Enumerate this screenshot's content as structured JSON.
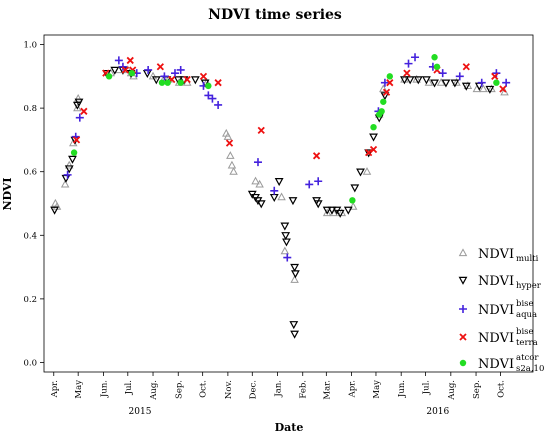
{
  "chart_data": {
    "type": "scatter",
    "title": "NDVI time series",
    "xlabel": "Date",
    "ylabel": "NDVI",
    "ylim": [
      -0.03,
      1.03
    ],
    "yticks": [
      0.0,
      0.2,
      0.4,
      0.6,
      0.8,
      1.0
    ],
    "ytick_labels": [
      "0.0",
      "0.2",
      "0.4",
      "0.6",
      "0.8",
      "1.0"
    ],
    "x_domain": [
      "2015-03-20",
      "2016-11-10"
    ],
    "month_ticks": [
      {
        "label": "Apr.",
        "date": "2015-04-01"
      },
      {
        "label": "May",
        "date": "2015-05-01"
      },
      {
        "label": "Jun.",
        "date": "2015-06-01"
      },
      {
        "label": "Jul.",
        "date": "2015-07-01"
      },
      {
        "label": "Aug.",
        "date": "2015-08-01"
      },
      {
        "label": "Sep.",
        "date": "2015-09-01"
      },
      {
        "label": "Oct.",
        "date": "2015-10-01"
      },
      {
        "label": "Nov.",
        "date": "2015-11-01"
      },
      {
        "label": "Dec.",
        "date": "2015-12-01"
      },
      {
        "label": "Jan.",
        "date": "2016-01-01"
      },
      {
        "label": "Feb.",
        "date": "2016-02-01"
      },
      {
        "label": "Mar.",
        "date": "2016-03-01"
      },
      {
        "label": "Apr.",
        "date": "2016-04-01"
      },
      {
        "label": "May",
        "date": "2016-05-01"
      },
      {
        "label": "Jun.",
        "date": "2016-06-01"
      },
      {
        "label": "Jul.",
        "date": "2016-07-01"
      },
      {
        "label": "Aug.",
        "date": "2016-08-01"
      },
      {
        "label": "Sep.",
        "date": "2016-09-01"
      },
      {
        "label": "Oct.",
        "date": "2016-10-01"
      }
    ],
    "year_labels": [
      {
        "label": "2015",
        "date": "2015-07-16"
      },
      {
        "label": "2016",
        "date": "2016-07-16"
      }
    ],
    "legend_position": "right",
    "series": [
      {
        "name": "NDVI",
        "subscript": "multi",
        "superscript": "",
        "marker": "triangle-up",
        "color": "#9a9a9a",
        "points": [
          [
            "2015-04-03",
            0.5
          ],
          [
            "2015-04-05",
            0.49
          ],
          [
            "2015-04-15",
            0.56
          ],
          [
            "2015-04-20",
            0.62
          ],
          [
            "2015-04-25",
            0.69
          ],
          [
            "2015-04-30",
            0.8
          ],
          [
            "2015-05-01",
            0.83
          ],
          [
            "2015-06-10",
            0.91
          ],
          [
            "2015-06-20",
            0.92
          ],
          [
            "2015-07-01",
            0.92
          ],
          [
            "2015-07-05",
            0.91
          ],
          [
            "2015-07-08",
            0.9
          ],
          [
            "2015-08-01",
            0.9
          ],
          [
            "2015-08-14",
            0.89
          ],
          [
            "2015-08-20",
            0.89
          ],
          [
            "2015-09-02",
            0.88
          ],
          [
            "2015-09-12",
            0.88
          ],
          [
            "2015-10-06",
            0.88
          ],
          [
            "2015-10-30",
            0.72
          ],
          [
            "2015-11-01",
            0.71
          ],
          [
            "2015-11-04",
            0.65
          ],
          [
            "2015-11-06",
            0.62
          ],
          [
            "2015-11-08",
            0.6
          ],
          [
            "2015-12-05",
            0.57
          ],
          [
            "2015-12-10",
            0.56
          ],
          [
            "2016-01-06",
            0.52
          ],
          [
            "2016-01-10",
            0.35
          ],
          [
            "2016-01-22",
            0.26
          ],
          [
            "2016-03-02",
            0.47
          ],
          [
            "2016-03-10",
            0.47
          ],
          [
            "2016-03-20",
            0.47
          ],
          [
            "2016-04-03",
            0.49
          ],
          [
            "2016-04-20",
            0.6
          ],
          [
            "2016-05-05",
            0.78
          ],
          [
            "2016-05-10",
            0.86
          ],
          [
            "2016-06-05",
            0.89
          ],
          [
            "2016-06-20",
            0.89
          ],
          [
            "2016-07-05",
            0.88
          ],
          [
            "2016-07-20",
            0.88
          ],
          [
            "2016-08-08",
            0.88
          ],
          [
            "2016-08-22",
            0.87
          ],
          [
            "2016-09-02",
            0.86
          ],
          [
            "2016-09-10",
            0.86
          ],
          [
            "2016-09-20",
            0.86
          ],
          [
            "2016-10-06",
            0.85
          ]
        ]
      },
      {
        "name": "NDVI",
        "subscript": "hyper",
        "superscript": "",
        "marker": "triangle-down",
        "color": "#000000",
        "points": [
          [
            "2015-04-02",
            0.48
          ],
          [
            "2015-04-16",
            0.58
          ],
          [
            "2015-04-20",
            0.61
          ],
          [
            "2015-04-24",
            0.64
          ],
          [
            "2015-04-27",
            0.7
          ],
          [
            "2015-04-30",
            0.81
          ],
          [
            "2015-05-02",
            0.82
          ],
          [
            "2015-06-05",
            0.91
          ],
          [
            "2015-06-15",
            0.92
          ],
          [
            "2015-06-25",
            0.92
          ],
          [
            "2015-07-05",
            0.91
          ],
          [
            "2015-07-25",
            0.91
          ],
          [
            "2015-08-05",
            0.89
          ],
          [
            "2015-08-18",
            0.89
          ],
          [
            "2015-09-01",
            0.89
          ],
          [
            "2015-09-08",
            0.89
          ],
          [
            "2015-09-22",
            0.89
          ],
          [
            "2015-10-04",
            0.88
          ],
          [
            "2015-12-01",
            0.53
          ],
          [
            "2015-12-05",
            0.52
          ],
          [
            "2015-12-08",
            0.51
          ],
          [
            "2015-12-12",
            0.5
          ],
          [
            "2015-12-28",
            0.52
          ],
          [
            "2016-01-03",
            0.57
          ],
          [
            "2016-01-10",
            0.43
          ],
          [
            "2016-01-11",
            0.4
          ],
          [
            "2016-01-12",
            0.38
          ],
          [
            "2016-01-20",
            0.51
          ],
          [
            "2016-01-22",
            0.3
          ],
          [
            "2016-01-23",
            0.28
          ],
          [
            "2016-01-21",
            0.12
          ],
          [
            "2016-01-22",
            0.09
          ],
          [
            "2016-02-18",
            0.51
          ],
          [
            "2016-02-20",
            0.5
          ],
          [
            "2016-03-02",
            0.48
          ],
          [
            "2016-03-08",
            0.48
          ],
          [
            "2016-03-14",
            0.48
          ],
          [
            "2016-03-18",
            0.47
          ],
          [
            "2016-03-28",
            0.48
          ],
          [
            "2016-04-05",
            0.55
          ],
          [
            "2016-04-12",
            0.6
          ],
          [
            "2016-04-22",
            0.66
          ],
          [
            "2016-04-28",
            0.71
          ],
          [
            "2016-05-05",
            0.77
          ],
          [
            "2016-05-12",
            0.84
          ],
          [
            "2016-06-05",
            0.89
          ],
          [
            "2016-06-12",
            0.89
          ],
          [
            "2016-06-22",
            0.89
          ],
          [
            "2016-07-02",
            0.89
          ],
          [
            "2016-07-12",
            0.88
          ],
          [
            "2016-07-26",
            0.88
          ],
          [
            "2016-08-06",
            0.88
          ],
          [
            "2016-08-20",
            0.87
          ],
          [
            "2016-09-05",
            0.87
          ],
          [
            "2016-09-18",
            0.86
          ]
        ]
      },
      {
        "name": "NDVI",
        "subscript": "aqua",
        "superscript": "bise",
        "marker": "plus",
        "color": "#4422dd",
        "points": [
          [
            "2015-04-18",
            0.59
          ],
          [
            "2015-04-28",
            0.71
          ],
          [
            "2015-05-03",
            0.77
          ],
          [
            "2015-06-20",
            0.95
          ],
          [
            "2015-06-25",
            0.93
          ],
          [
            "2015-07-12",
            0.91
          ],
          [
            "2015-07-26",
            0.92
          ],
          [
            "2015-08-15",
            0.9
          ],
          [
            "2015-08-28",
            0.91
          ],
          [
            "2015-09-04",
            0.92
          ],
          [
            "2015-10-02",
            0.87
          ],
          [
            "2015-10-08",
            0.84
          ],
          [
            "2015-10-13",
            0.83
          ],
          [
            "2015-10-20",
            0.81
          ],
          [
            "2015-12-08",
            0.63
          ],
          [
            "2015-12-28",
            0.54
          ],
          [
            "2016-01-13",
            0.33
          ],
          [
            "2016-02-09",
            0.56
          ],
          [
            "2016-02-20",
            0.57
          ],
          [
            "2016-05-04",
            0.79
          ],
          [
            "2016-05-12",
            0.88
          ],
          [
            "2016-06-10",
            0.94
          ],
          [
            "2016-06-18",
            0.96
          ],
          [
            "2016-07-10",
            0.93
          ],
          [
            "2016-07-22",
            0.91
          ],
          [
            "2016-08-12",
            0.9
          ],
          [
            "2016-09-08",
            0.88
          ],
          [
            "2016-09-26",
            0.91
          ],
          [
            "2016-10-08",
            0.88
          ]
        ]
      },
      {
        "name": "NDVI",
        "subscript": "terra",
        "superscript": "bise",
        "marker": "x",
        "color": "#ee1111",
        "points": [
          [
            "2015-04-29",
            0.7
          ],
          [
            "2015-05-08",
            0.79
          ],
          [
            "2015-06-04",
            0.91
          ],
          [
            "2015-06-28",
            0.92
          ],
          [
            "2015-07-04",
            0.95
          ],
          [
            "2015-07-07",
            0.92
          ],
          [
            "2015-08-10",
            0.93
          ],
          [
            "2015-08-24",
            0.89
          ],
          [
            "2015-09-12",
            0.89
          ],
          [
            "2015-10-02",
            0.9
          ],
          [
            "2015-10-20",
            0.88
          ],
          [
            "2015-11-03",
            0.69
          ],
          [
            "2015-12-12",
            0.73
          ],
          [
            "2016-02-18",
            0.65
          ],
          [
            "2016-04-22",
            0.66
          ],
          [
            "2016-04-28",
            0.67
          ],
          [
            "2016-05-14",
            0.85
          ],
          [
            "2016-05-18",
            0.88
          ],
          [
            "2016-06-08",
            0.91
          ],
          [
            "2016-07-15",
            0.92
          ],
          [
            "2016-08-20",
            0.93
          ],
          [
            "2016-09-24",
            0.9
          ],
          [
            "2016-10-04",
            0.86
          ]
        ]
      },
      {
        "name": "NDVI",
        "subscript": "s2a,10",
        "superscript": "atcor",
        "marker": "circle",
        "color": "#22dd22",
        "points": [
          [
            "2015-04-26",
            0.66
          ],
          [
            "2015-06-08",
            0.9
          ],
          [
            "2015-07-06",
            0.91
          ],
          [
            "2015-08-12",
            0.88
          ],
          [
            "2015-08-19",
            0.88
          ],
          [
            "2015-09-04",
            0.88
          ],
          [
            "2015-10-08",
            0.87
          ],
          [
            "2016-04-02",
            0.51
          ],
          [
            "2016-04-28",
            0.74
          ],
          [
            "2016-05-05",
            0.78
          ],
          [
            "2016-05-08",
            0.79
          ],
          [
            "2016-05-10",
            0.82
          ],
          [
            "2016-05-18",
            0.9
          ],
          [
            "2016-07-12",
            0.96
          ],
          [
            "2016-07-15",
            0.93
          ],
          [
            "2016-09-26",
            0.88
          ]
        ]
      }
    ]
  }
}
